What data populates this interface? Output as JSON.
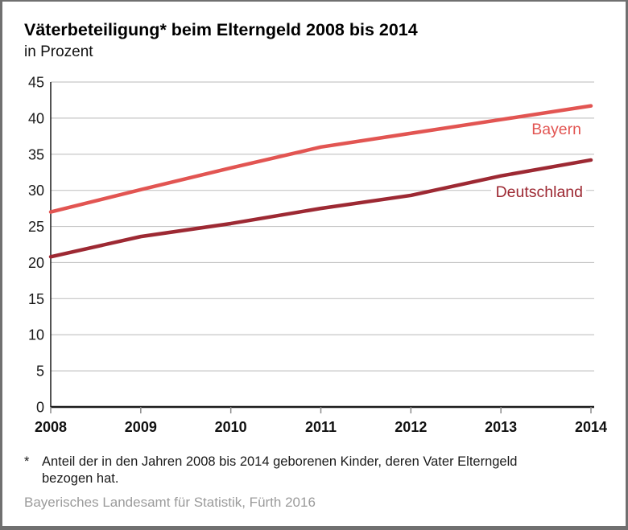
{
  "header": {
    "title": "Väterbeteiligung* beim Elterngeld 2008 bis 2014",
    "subtitle": "in Prozent"
  },
  "chart_data": {
    "type": "line",
    "title": "Väterbeteiligung* beim Elterngeld 2008 bis 2014",
    "subtitle": "in Prozent",
    "xlabel": "",
    "ylabel": "in Prozent",
    "categories": [
      "2008",
      "2009",
      "2010",
      "2011",
      "2012",
      "2013",
      "2014"
    ],
    "x": [
      2008,
      2009,
      2010,
      2011,
      2012,
      2013,
      2014
    ],
    "series": [
      {
        "name": "Bayern",
        "color": "#e25552",
        "values": [
          27.0,
          30.1,
          33.1,
          36.0,
          37.9,
          39.8,
          41.7
        ]
      },
      {
        "name": "Deutschland",
        "color": "#9d2933",
        "values": [
          20.8,
          23.6,
          25.4,
          27.5,
          29.3,
          32.0,
          34.2
        ]
      }
    ],
    "ylim": [
      0,
      45
    ],
    "yticks": [
      0,
      5,
      10,
      15,
      20,
      25,
      30,
      35,
      40,
      45
    ],
    "grid": true,
    "legend_position": "inline-right-of-lines"
  },
  "footnote": {
    "marker": "*",
    "text_line1": "Anteil der in den Jahren 2008 bis 2014 geborenen Kinder, deren Vater Elterngeld",
    "text_line2": "bezogen hat."
  },
  "source": "Bayerisches Landesamt für Statistik, Fürth 2016",
  "colors": {
    "grid": "#c6c6c6",
    "axis": "#1a1a1a",
    "tick": "#8a8a8a",
    "border": "#707070",
    "source_text": "#9b9b9b",
    "background": "#ffffff"
  }
}
